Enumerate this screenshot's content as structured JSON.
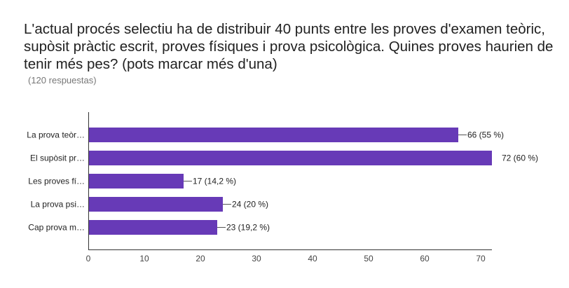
{
  "question": {
    "title": "L'actual procés selectiu ha de distribuir 40 punts entre les proves d'examen teòric, supòsit pràctic escrit, proves físiques i prova psicològica. Quines proves haurien de tenir més pes? (pots marcar més d'una)",
    "responses": "(120 respuestas)"
  },
  "chart_data": {
    "type": "bar",
    "orientation": "horizontal",
    "categories": [
      "La prova teòr…",
      "El supòsit pr…",
      "Les proves fí…",
      "La prova psi…",
      "Cap prova m…"
    ],
    "values": [
      66,
      72,
      17,
      24,
      23
    ],
    "value_labels": [
      "66 (55 %)",
      "72 (60 %)",
      "17 (14,2 %)",
      "24 (20 %)",
      "23 (19,2 %)"
    ],
    "xlim": [
      0,
      72
    ],
    "xticks": [
      0,
      10,
      20,
      30,
      40,
      50,
      60,
      70
    ],
    "grid": false,
    "colors": {
      "bar": "#673ab7",
      "axis": "#333333",
      "leader": "#555555"
    }
  }
}
